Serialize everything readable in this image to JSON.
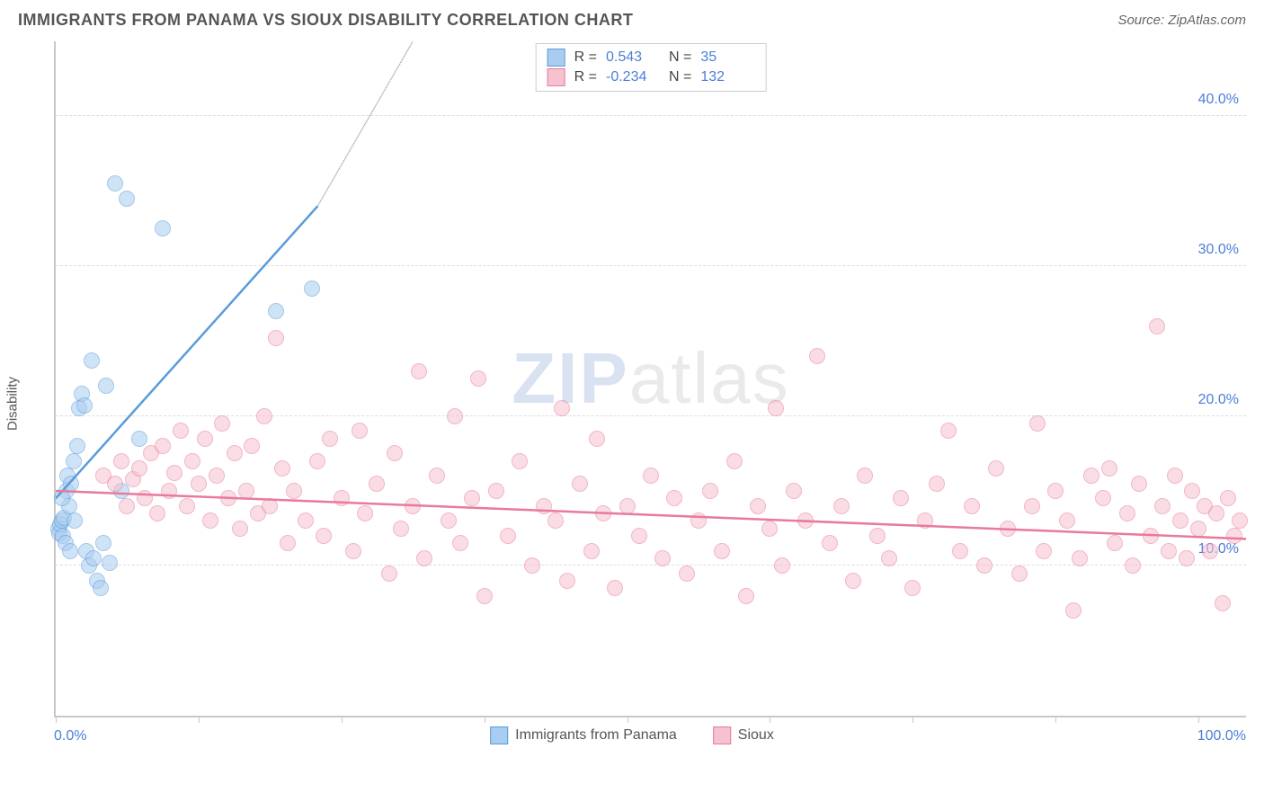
{
  "title": "IMMIGRANTS FROM PANAMA VS SIOUX DISABILITY CORRELATION CHART",
  "source": "Source: ZipAtlas.com",
  "ylabel": "Disability",
  "watermark_bold": "ZIP",
  "watermark_light": "atlas",
  "chart": {
    "type": "scatter",
    "xlim": [
      0,
      100
    ],
    "ylim": [
      0,
      45
    ],
    "x_tick_positions": [
      0,
      12,
      24,
      36,
      48,
      60,
      72,
      84,
      96
    ],
    "x_axis_label_left": "0.0%",
    "x_axis_label_right": "100.0%",
    "y_gridlines": [
      {
        "value": 10,
        "label": "10.0%"
      },
      {
        "value": 20,
        "label": "20.0%"
      },
      {
        "value": 30,
        "label": "30.0%"
      },
      {
        "value": 40,
        "label": "40.0%"
      }
    ],
    "background_color": "#ffffff",
    "grid_color": "#dddddd",
    "axis_color": "#c8c8c8",
    "label_color": "#4a7fd8",
    "point_radius": 9,
    "point_opacity": 0.55,
    "series": [
      {
        "name": "Immigrants from Panama",
        "fill": "#a9cdf0",
        "stroke": "#5a9bdc",
        "r_value": "0.543",
        "n_value": "35",
        "trend": {
          "x1": 0,
          "y1": 14.5,
          "x2": 22,
          "y2": 34.0,
          "extend_dash_to_x": 30,
          "extend_dash_to_y": 45
        },
        "points": [
          [
            0.2,
            12.5
          ],
          [
            0.3,
            12.2
          ],
          [
            0.4,
            12.8
          ],
          [
            0.5,
            13.0
          ],
          [
            0.6,
            12.0
          ],
          [
            0.7,
            13.2
          ],
          [
            0.8,
            11.5
          ],
          [
            0.9,
            15.0
          ],
          [
            1.0,
            16.0
          ],
          [
            1.1,
            14.0
          ],
          [
            1.3,
            15.5
          ],
          [
            1.5,
            17.0
          ],
          [
            1.8,
            18.0
          ],
          [
            2.0,
            20.5
          ],
          [
            2.2,
            21.5
          ],
          [
            2.4,
            20.7
          ],
          [
            2.6,
            11.0
          ],
          [
            2.8,
            10.0
          ],
          [
            3.0,
            23.7
          ],
          [
            3.2,
            10.5
          ],
          [
            3.5,
            9.0
          ],
          [
            3.8,
            8.5
          ],
          [
            4.0,
            11.5
          ],
          [
            4.2,
            22.0
          ],
          [
            4.5,
            10.2
          ],
          [
            5.0,
            35.5
          ],
          [
            5.5,
            15.0
          ],
          [
            6.0,
            34.5
          ],
          [
            7.0,
            18.5
          ],
          [
            9.0,
            32.5
          ],
          [
            1.6,
            13.0
          ],
          [
            0.5,
            14.5
          ],
          [
            1.2,
            11.0
          ],
          [
            18.5,
            27.0
          ],
          [
            21.5,
            28.5
          ]
        ]
      },
      {
        "name": "Sioux",
        "fill": "#f6c2cf",
        "stroke": "#e87a9b",
        "r_value": "-0.234",
        "n_value": "132",
        "trend": {
          "x1": 0,
          "y1": 15.0,
          "x2": 100,
          "y2": 11.8
        },
        "points": [
          [
            4,
            16.0
          ],
          [
            5,
            15.5
          ],
          [
            5.5,
            17.0
          ],
          [
            6,
            14.0
          ],
          [
            6.5,
            15.8
          ],
          [
            7,
            16.5
          ],
          [
            7.5,
            14.5
          ],
          [
            8,
            17.5
          ],
          [
            8.5,
            13.5
          ],
          [
            9,
            18.0
          ],
          [
            9.5,
            15.0
          ],
          [
            10,
            16.2
          ],
          [
            10.5,
            19.0
          ],
          [
            11,
            14.0
          ],
          [
            11.5,
            17.0
          ],
          [
            12,
            15.5
          ],
          [
            12.5,
            18.5
          ],
          [
            13,
            13.0
          ],
          [
            13.5,
            16.0
          ],
          [
            14,
            19.5
          ],
          [
            14.5,
            14.5
          ],
          [
            15,
            17.5
          ],
          [
            15.5,
            12.5
          ],
          [
            16,
            15.0
          ],
          [
            16.5,
            18.0
          ],
          [
            17,
            13.5
          ],
          [
            17.5,
            20.0
          ],
          [
            18,
            14.0
          ],
          [
            18.5,
            25.2
          ],
          [
            19,
            16.5
          ],
          [
            19.5,
            11.5
          ],
          [
            20,
            15.0
          ],
          [
            21,
            13.0
          ],
          [
            22,
            17.0
          ],
          [
            22.5,
            12.0
          ],
          [
            23,
            18.5
          ],
          [
            24,
            14.5
          ],
          [
            25,
            11.0
          ],
          [
            25.5,
            19.0
          ],
          [
            26,
            13.5
          ],
          [
            27,
            15.5
          ],
          [
            28,
            9.5
          ],
          [
            28.5,
            17.5
          ],
          [
            29,
            12.5
          ],
          [
            30,
            14.0
          ],
          [
            30.5,
            23.0
          ],
          [
            31,
            10.5
          ],
          [
            32,
            16.0
          ],
          [
            33,
            13.0
          ],
          [
            33.5,
            20.0
          ],
          [
            34,
            11.5
          ],
          [
            35,
            14.5
          ],
          [
            35.5,
            22.5
          ],
          [
            36,
            8.0
          ],
          [
            37,
            15.0
          ],
          [
            38,
            12.0
          ],
          [
            39,
            17.0
          ],
          [
            40,
            10.0
          ],
          [
            41,
            14.0
          ],
          [
            42,
            13.0
          ],
          [
            42.5,
            20.5
          ],
          [
            43,
            9.0
          ],
          [
            44,
            15.5
          ],
          [
            45,
            11.0
          ],
          [
            45.5,
            18.5
          ],
          [
            46,
            13.5
          ],
          [
            47,
            8.5
          ],
          [
            48,
            14.0
          ],
          [
            49,
            12.0
          ],
          [
            50,
            16.0
          ],
          [
            51,
            10.5
          ],
          [
            52,
            14.5
          ],
          [
            53,
            9.5
          ],
          [
            54,
            13.0
          ],
          [
            55,
            15.0
          ],
          [
            56,
            11.0
          ],
          [
            57,
            17.0
          ],
          [
            58,
            8.0
          ],
          [
            59,
            14.0
          ],
          [
            60,
            12.5
          ],
          [
            60.5,
            20.5
          ],
          [
            61,
            10.0
          ],
          [
            62,
            15.0
          ],
          [
            63,
            13.0
          ],
          [
            64,
            24.0
          ],
          [
            65,
            11.5
          ],
          [
            66,
            14.0
          ],
          [
            67,
            9.0
          ],
          [
            68,
            16.0
          ],
          [
            69,
            12.0
          ],
          [
            70,
            10.5
          ],
          [
            71,
            14.5
          ],
          [
            72,
            8.5
          ],
          [
            73,
            13.0
          ],
          [
            74,
            15.5
          ],
          [
            75,
            19.0
          ],
          [
            76,
            11.0
          ],
          [
            77,
            14.0
          ],
          [
            78,
            10.0
          ],
          [
            79,
            16.5
          ],
          [
            80,
            12.5
          ],
          [
            81,
            9.5
          ],
          [
            82,
            14.0
          ],
          [
            82.5,
            19.5
          ],
          [
            83,
            11.0
          ],
          [
            84,
            15.0
          ],
          [
            85,
            13.0
          ],
          [
            85.5,
            7.0
          ],
          [
            86,
            10.5
          ],
          [
            87,
            16.0
          ],
          [
            88,
            14.5
          ],
          [
            88.5,
            16.5
          ],
          [
            89,
            11.5
          ],
          [
            90,
            13.5
          ],
          [
            90.5,
            10.0
          ],
          [
            91,
            15.5
          ],
          [
            92,
            12.0
          ],
          [
            92.5,
            26.0
          ],
          [
            93,
            14.0
          ],
          [
            93.5,
            11.0
          ],
          [
            94,
            16.0
          ],
          [
            94.5,
            13.0
          ],
          [
            95,
            10.5
          ],
          [
            95.5,
            15.0
          ],
          [
            96,
            12.5
          ],
          [
            96.5,
            14.0
          ],
          [
            97,
            11.0
          ],
          [
            97.5,
            13.5
          ],
          [
            98,
            7.5
          ],
          [
            98.5,
            14.5
          ],
          [
            99,
            12.0
          ],
          [
            99.5,
            13.0
          ]
        ]
      }
    ]
  }
}
